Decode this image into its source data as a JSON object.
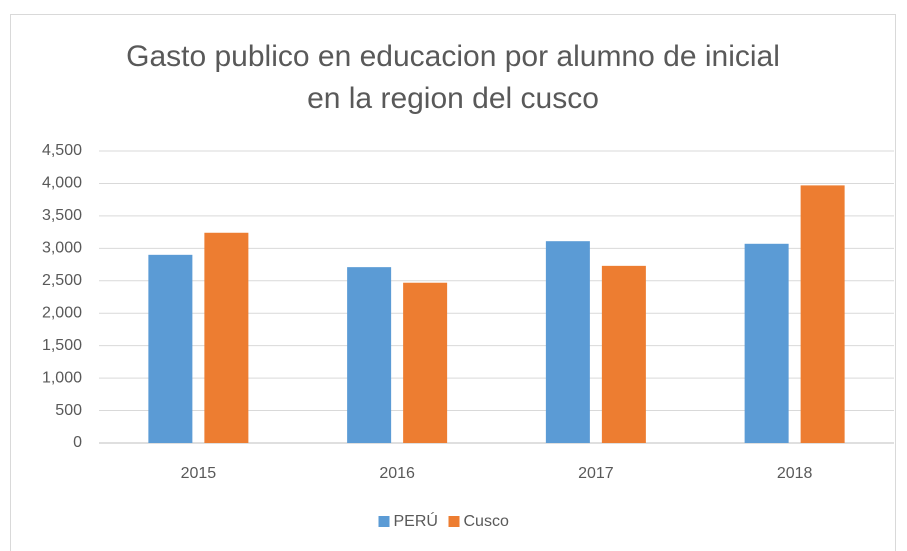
{
  "chart_data": {
    "type": "bar",
    "title": [
      "Gasto publico en educacion por alumno de inicial",
      "en la region del cusco"
    ],
    "categories": [
      "2015",
      "2016",
      "2017",
      "2018"
    ],
    "series": [
      {
        "name": "PERÚ",
        "color": "#5b9bd5",
        "values": [
          2900,
          2710,
          3110,
          3070
        ]
      },
      {
        "name": "Cusco",
        "color": "#ed7d31",
        "values": [
          3240,
          2470,
          2730,
          3970
        ]
      }
    ],
    "ylim": [
      0,
      4500
    ],
    "yticks": [
      0,
      500,
      {
        "value": 1000,
        "label": "1,000"
      },
      {
        "value": 1500,
        "label": "1,500"
      },
      {
        "value": 2000,
        "label": "2,000"
      },
      {
        "value": 2500,
        "label": "2,500"
      },
      {
        "value": 3000,
        "label": "3,000"
      },
      {
        "value": 3500,
        "label": "3,500"
      },
      {
        "value": 4000,
        "label": "4,000"
      },
      {
        "value": 4500,
        "label": "4,500"
      }
    ],
    "grid": true,
    "legend": "bottom"
  }
}
